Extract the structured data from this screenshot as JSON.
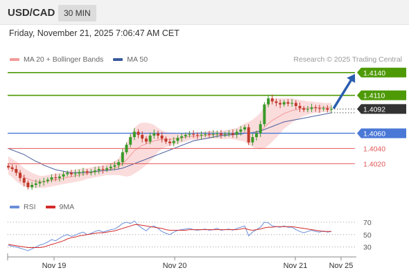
{
  "header": {
    "symbol": "USD/CAD",
    "timeframe": "30 MIN",
    "datetime": "Friday, November 21, 2025 7:06:47 AM CET"
  },
  "legend": {
    "ma20_label": "MA 20 + Bollinger Bands",
    "ma50_label": "MA 50",
    "credit": "Research © 2025 Trading Central",
    "rsi_label": "RSI",
    "rsi_ma_label": "9MA"
  },
  "colors": {
    "bull_candle": "#3a9a2a",
    "bear_candle": "#c0392b",
    "bollinger_fill": "#fbdcdc",
    "ma20": "#f29a9a",
    "ma50": "#4a5f9e",
    "resistance": "#4e9a06",
    "pivot": "#4a78d6",
    "support": "#e25656",
    "current_price_tag": "#333333",
    "arrow": "#2a5db0",
    "rsi": "#6a8fd8",
    "rsi_ma": "#d42a2a"
  },
  "chart_data": [
    {
      "type": "candlestick",
      "instrument": "USD/CAD",
      "interval": "30 MIN",
      "x_ticks": [
        "Nov 19",
        "Nov 20",
        "Nov 21",
        "Nov 25"
      ],
      "ylim": [
        1.3982,
        1.4148
      ],
      "current_price": 1.4092,
      "levels": [
        {
          "label": "1.4140",
          "value": 1.414,
          "kind": "resistance"
        },
        {
          "label": "1.4110",
          "value": 1.411,
          "kind": "resistance"
        },
        {
          "label": "1.4060",
          "value": 1.406,
          "kind": "pivot"
        },
        {
          "label": "1.4040",
          "value": 1.404,
          "kind": "support"
        },
        {
          "label": "1.4020",
          "value": 1.402,
          "kind": "support"
        }
      ],
      "current_label": "1.4092",
      "target_arrow": {
        "from": 1.4092,
        "to": 1.414
      },
      "close": [
        1.4015,
        1.4013,
        1.4008,
        1.4001,
        1.3995,
        1.3989,
        1.3992,
        1.3994,
        1.3996,
        1.3997,
        1.3999,
        1.4002,
        1.4001,
        1.4003,
        1.4006,
        1.4008,
        1.4006,
        1.4007,
        1.4009,
        1.401,
        1.4008,
        1.4009,
        1.4011,
        1.4013,
        1.4012,
        1.4014,
        1.4016,
        1.4018,
        1.4022,
        1.4035,
        1.4045,
        1.4055,
        1.4062,
        1.4058,
        1.4053,
        1.4049,
        1.4057,
        1.406,
        1.4057,
        1.4053,
        1.4049,
        1.4047,
        1.405,
        1.4054,
        1.4056,
        1.4058,
        1.4059,
        1.4058,
        1.4057,
        1.4058,
        1.4059,
        1.4058,
        1.4059,
        1.406,
        1.4058,
        1.4059,
        1.406,
        1.4058,
        1.4062,
        1.4065,
        1.4068,
        1.4048,
        1.4055,
        1.406,
        1.4072,
        1.4098,
        1.4106,
        1.4102,
        1.41,
        1.4098,
        1.4101,
        1.4099,
        1.41,
        1.4096,
        1.4093,
        1.4091,
        1.4092,
        1.4094,
        1.4093,
        1.4092,
        1.4093,
        1.4091,
        1.4092
      ],
      "ma20": [
        1.4018,
        1.4014,
        1.401,
        1.4006,
        1.4002,
        1.4,
        1.3998,
        1.3997,
        1.3996,
        1.3996,
        1.3997,
        1.3998,
        1.3999,
        1.4,
        1.4001,
        1.4002,
        1.4003,
        1.4004,
        1.4005,
        1.4006,
        1.4007,
        1.4008,
        1.4009,
        1.401,
        1.4011,
        1.4012,
        1.4013,
        1.4014,
        1.4016,
        1.402,
        1.4025,
        1.4031,
        1.4037,
        1.4041,
        1.4044,
        1.4046,
        1.4048,
        1.405,
        1.4051,
        1.4052,
        1.4052,
        1.4052,
        1.4053,
        1.4053,
        1.4054,
        1.4055,
        1.4056,
        1.4056,
        1.4056,
        1.4057,
        1.4057,
        1.4058,
        1.4058,
        1.4058,
        1.4058,
        1.4058,
        1.4059,
        1.4059,
        1.4059,
        1.406,
        1.4061,
        1.406,
        1.406,
        1.4061,
        1.4063,
        1.4068,
        1.4073,
        1.4077,
        1.408,
        1.4083,
        1.4086,
        1.4088,
        1.409,
        1.4091,
        1.4092,
        1.4093,
        1.4093,
        1.4094,
        1.4094,
        1.4094,
        1.4094,
        1.4094,
        1.4094
      ],
      "band_width": [
        0.0012,
        0.0012,
        0.0013,
        0.0013,
        0.0012,
        0.0011,
        0.001,
        0.0009,
        0.0008,
        0.0008,
        0.0008,
        0.0008,
        0.0008,
        0.0008,
        0.0008,
        0.0008,
        0.0008,
        0.0008,
        0.0008,
        0.0008,
        0.0007,
        0.0007,
        0.0007,
        0.0007,
        0.0007,
        0.0007,
        0.0008,
        0.0009,
        0.0011,
        0.0016,
        0.0022,
        0.0027,
        0.003,
        0.0031,
        0.003,
        0.0028,
        0.0025,
        0.0021,
        0.0016,
        0.0012,
        0.001,
        0.0009,
        0.0008,
        0.0007,
        0.0006,
        0.0006,
        0.0005,
        0.0005,
        0.0005,
        0.0005,
        0.0005,
        0.0005,
        0.0005,
        0.0005,
        0.0005,
        0.0006,
        0.0006,
        0.0007,
        0.0008,
        0.001,
        0.0012,
        0.0015,
        0.0018,
        0.0021,
        0.0024,
        0.0028,
        0.0029,
        0.0028,
        0.0026,
        0.0023,
        0.002,
        0.0018,
        0.0016,
        0.0014,
        0.0012,
        0.001,
        0.0009,
        0.0008,
        0.0007,
        0.0007,
        0.0006,
        0.0006,
        0.0006
      ],
      "ma50": [
        1.404,
        1.4038,
        1.4036,
        1.4034,
        1.4032,
        1.4029,
        1.4026,
        1.4023,
        1.4021,
        1.4018,
        1.4016,
        1.4014,
        1.4012,
        1.4011,
        1.401,
        1.4009,
        1.4008,
        1.4008,
        1.4008,
        1.4008,
        1.4009,
        1.4009,
        1.401,
        1.401,
        1.4011,
        1.4011,
        1.4012,
        1.4012,
        1.4013,
        1.4014,
        1.4016,
        1.4018,
        1.402,
        1.4022,
        1.4024,
        1.4026,
        1.4028,
        1.403,
        1.4032,
        1.4034,
        1.4036,
        1.4038,
        1.404,
        1.4042,
        1.4044,
        1.4046,
        1.4048,
        1.405,
        1.4051,
        1.4052,
        1.4053,
        1.4054,
        1.4055,
        1.4056,
        1.4057,
        1.4057,
        1.4058,
        1.4058,
        1.4059,
        1.4059,
        1.406,
        1.406,
        1.4061,
        1.4062,
        1.4063,
        1.4065,
        1.4067,
        1.4069,
        1.4071,
        1.4073,
        1.4075,
        1.4076,
        1.4077,
        1.4078,
        1.4079,
        1.408,
        1.4081,
        1.4082,
        1.4083,
        1.4084,
        1.4085,
        1.4086,
        1.4087
      ]
    },
    {
      "type": "line",
      "title": "RSI",
      "y_ticks": [
        70,
        50,
        30
      ],
      "ylim": [
        15,
        80
      ],
      "series": [
        {
          "name": "RSI",
          "values": [
            33,
            31,
            30,
            28,
            26,
            24,
            27,
            30,
            33,
            35,
            38,
            42,
            40,
            44,
            48,
            50,
            47,
            49,
            52,
            54,
            50,
            52,
            55,
            57,
            54,
            56,
            58,
            59,
            63,
            68,
            70,
            68,
            72,
            65,
            60,
            56,
            62,
            64,
            60,
            55,
            52,
            50,
            54,
            57,
            58,
            59,
            60,
            58,
            57,
            58,
            59,
            57,
            58,
            60,
            57,
            58,
            59,
            57,
            60,
            62,
            64,
            48,
            54,
            58,
            62,
            70,
            69,
            64,
            63,
            62,
            64,
            62,
            62,
            58,
            55,
            53,
            55,
            57,
            55,
            54,
            56,
            54,
            55
          ]
        },
        {
          "name": "9MA",
          "values": [
            34,
            33,
            32,
            31,
            30,
            29,
            29,
            29,
            29,
            30,
            32,
            34,
            36,
            38,
            40,
            43,
            45,
            46,
            48,
            49,
            50,
            51,
            52,
            53,
            53,
            54,
            55,
            56,
            58,
            60,
            62,
            64,
            66,
            66,
            65,
            64,
            63,
            62,
            61,
            60,
            58,
            57,
            57,
            57,
            57,
            57,
            58,
            58,
            58,
            58,
            58,
            58,
            58,
            58,
            58,
            58,
            58,
            58,
            58,
            59,
            60,
            58,
            57,
            58,
            59,
            61,
            62,
            62,
            63,
            63,
            63,
            63,
            63,
            62,
            61,
            60,
            59,
            58,
            57,
            56,
            55,
            55,
            55
          ]
        }
      ]
    }
  ]
}
